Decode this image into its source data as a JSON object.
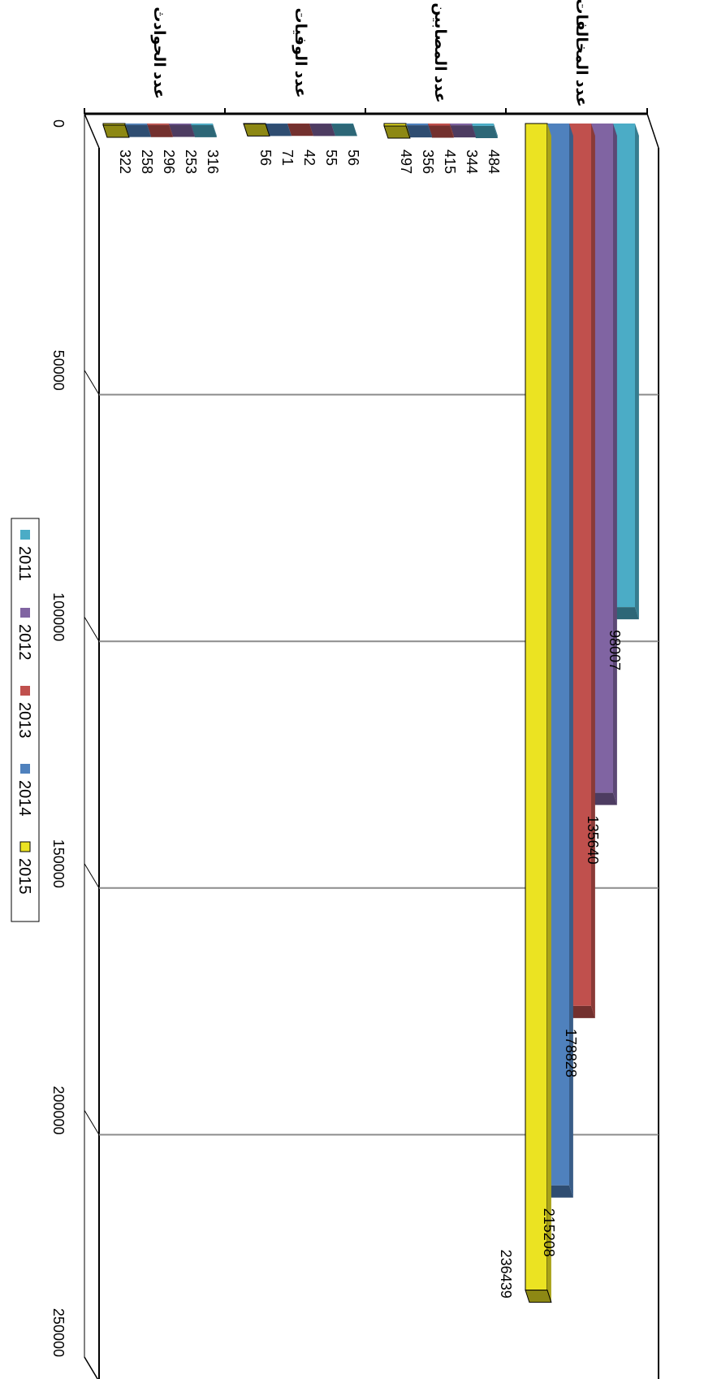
{
  "chart_data": {
    "type": "bar",
    "orientation": "horizontal-3d",
    "categories": [
      "عدد المخالفات",
      "عدد المصابين",
      "عدد الوفيات",
      "عدد الحوادث"
    ],
    "series": [
      {
        "name": "2011",
        "values": [
          98007,
          484,
          56,
          316
        ],
        "color": "#4bacc6"
      },
      {
        "name": "2012",
        "values": [
          135640,
          344,
          55,
          253
        ],
        "color": "#8064a2"
      },
      {
        "name": "2013",
        "values": [
          178828,
          415,
          42,
          296
        ],
        "color": "#c0504d"
      },
      {
        "name": "2014",
        "values": [
          215208,
          356,
          71,
          258
        ],
        "color": "#4f81bd"
      },
      {
        "name": "2015",
        "values": [
          236439,
          497,
          56,
          322
        ],
        "color": "#ebe322"
      }
    ],
    "value_axis": {
      "min": 0,
      "max": 250000,
      "ticks": [
        "0",
        "50000",
        "100000",
        "150000",
        "200000",
        "250000"
      ]
    },
    "title": "",
    "xlabel": "",
    "ylabel": "",
    "grid": true,
    "legend": {
      "position": "bottom",
      "labels": [
        "2011",
        "2012",
        "2013",
        "2014",
        "2015"
      ]
    }
  }
}
